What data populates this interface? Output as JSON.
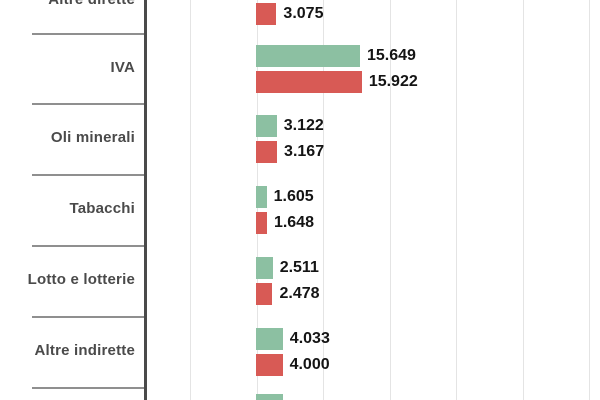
{
  "chart_data": {
    "type": "bar",
    "orientation": "horizontal",
    "title": "",
    "xlabel": "",
    "ylabel": "",
    "categories": [
      "Altre dirette",
      "IVA",
      "Oli minerali",
      "Tabacchi",
      "Lotto e lotterie",
      "Altre indirette"
    ],
    "series": [
      {
        "name": "green",
        "color": "#8cc0a2",
        "values": [
          null,
          15.649,
          3.122,
          1.605,
          2.511,
          4.033
        ],
        "labels": [
          "",
          "15.649",
          "3.122",
          "1.605",
          "2.511",
          "4.033"
        ]
      },
      {
        "name": "red",
        "color": "#d85a55",
        "values": [
          3.075,
          15.922,
          3.167,
          1.648,
          2.478,
          4.0
        ],
        "labels": [
          "3.075",
          "15.922",
          "3.167",
          "1.648",
          "2.478",
          "4.000"
        ]
      }
    ],
    "value_label_format": "thousands with dot separator",
    "xlim": [
      -10,
      50
    ],
    "grid_interval": 10,
    "grid": true,
    "legend_position": "not visible (image cropped)",
    "cropped_edges": {
      "top_row_green_bar_and_value_hidden": true,
      "bottom_partial_green_bar_of_next_row": true
    }
  },
  "colors": {
    "background": "#ffffff",
    "gridline": "#e4e4e4",
    "row_separator": "#8f8f8f",
    "label_divider": "#4a4a4a",
    "category_text": "#4a4a4a",
    "value_text": "#141414",
    "bar_green": "#8cc0a2",
    "bar_red": "#d85a55"
  }
}
